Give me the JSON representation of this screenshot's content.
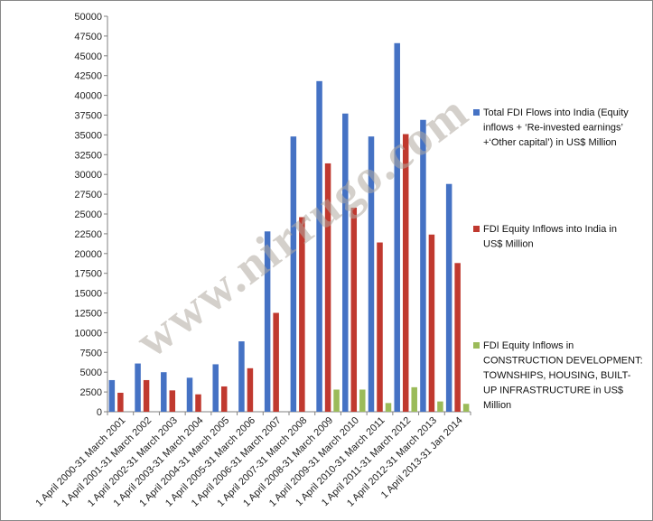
{
  "chart_data": {
    "type": "bar",
    "title": "",
    "xlabel": "",
    "ylabel": "",
    "ylim": [
      0,
      50000
    ],
    "y_ticks": [
      0,
      2500,
      5000,
      7500,
      10000,
      12500,
      15000,
      17500,
      20000,
      22500,
      25000,
      27500,
      30000,
      32500,
      35000,
      37500,
      40000,
      42500,
      45000,
      47500,
      50000
    ],
    "grid": false,
    "legend_position": "right",
    "categories": [
      "1 April 2000-31 March 2001",
      "1 April 2001-31 March 2002",
      "1 April 2002-31 March 2003",
      "1 April 2003-31 March 2004",
      "1 April 2004-31 March 2005",
      "1 April 2005-31 March 2006",
      "1 April 2006-31 March 2007",
      "1 April 2007-31 March 2008",
      "1 April 2008-31 March 2009",
      "1 April 2009-31 March 2010",
      "1 April 2010-31 March 2011",
      "1 April 2011-31 March 2012",
      "1 April 2012-31 March 2013",
      "1 April 2013-31 Jan 2014"
    ],
    "series": [
      {
        "name": "Total FDI Flows into India (Equity inflows + 'Re-invested earnings' +'Other capital') in US$ Million",
        "legend_lines": [
          "Total FDI Flows into India (Equity",
          "inflows + ‘Re-invested earnings’",
          "+‘Other capital’) in US$ Million"
        ],
        "color": "#4572C4",
        "values": [
          4000,
          6100,
          5000,
          4300,
          6000,
          8900,
          22800,
          34800,
          41800,
          37700,
          34800,
          46600,
          36900,
          28800
        ]
      },
      {
        "name": "FDI Equity Inflows into India in US$ Million",
        "legend_lines": [
          "FDI Equity Inflows into India in",
          "US$ Million"
        ],
        "color": "#C0392F",
        "values": [
          2400,
          4000,
          2700,
          2200,
          3200,
          5500,
          12500,
          24600,
          31400,
          25800,
          21400,
          35100,
          22400,
          18800
        ]
      },
      {
        "name": "FDI Equity Inflows in CONSTRUCTION DEVELOPMENT: TOWNSHIPS, HOUSING, BUILT-UP INFRASTRUCTURE in US$ Million",
        "legend_lines": [
          "FDI Equity Inflows in",
          "CONSTRUCTION DEVELOPMENT:",
          "TOWNSHIPS, HOUSING, BUILT-",
          "UP INFRASTRUCTURE  in US$",
          "Million"
        ],
        "color": "#9BBB59",
        "values": [
          0,
          0,
          0,
          0,
          0,
          0,
          0,
          0,
          2800,
          2800,
          1100,
          3100,
          1300,
          1000
        ]
      }
    ]
  },
  "watermark": "www.nirrugo.com"
}
